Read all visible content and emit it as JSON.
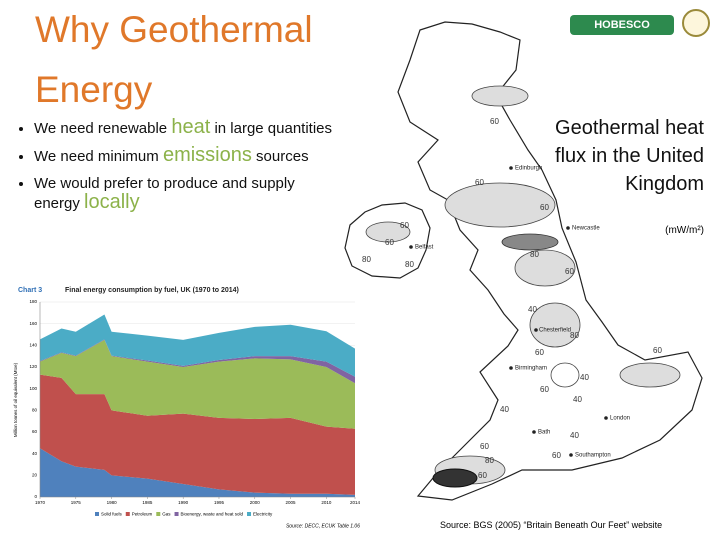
{
  "header": {
    "title_line1": "Why Geothermal",
    "title_line2": "Energy",
    "logo": "HOBESCO"
  },
  "bullets": [
    {
      "before": "We need renewable",
      "highlight": "heat",
      "after": "in large quantities"
    },
    {
      "before": "We need minimum",
      "highlight": "emissions",
      "after": "sources"
    },
    {
      "before": "We would prefer to produce and supply energy",
      "highlight": "locally"
    }
  ],
  "map": {
    "caption": "Geothermal heat flux in the United Kingdom",
    "unit": "(mW/m²)",
    "labels": [
      "60",
      "Edinburgh",
      "60",
      "60",
      "Newcastle",
      "60",
      "60",
      "Belfast",
      "80",
      "80",
      "80",
      "60",
      "40",
      "Chesterfield",
      "80",
      "60",
      "60",
      "Birmingham",
      "40",
      "60",
      "40",
      "40",
      "London",
      "Bath",
      "40",
      "60",
      "60",
      "Southampton",
      "80",
      "60"
    ],
    "source": "Source: BGS (2005) “Britain Beneath Our Feet” website"
  },
  "chart_data": {
    "type": "area",
    "stacked": true,
    "label": "Chart 3",
    "title": "Final energy consumption by fuel, UK (1970 to 2014)",
    "ylabel": "Million tonnes of oil equivalent (Mtoe)",
    "x": [
      1970,
      1973,
      1975,
      1979,
      1980,
      1985,
      1990,
      1995,
      2000,
      2005,
      2010,
      2014
    ],
    "series": [
      {
        "name": "Solid fuels",
        "color": "#4f81bd",
        "values": [
          45,
          33,
          28,
          25,
          20,
          17,
          12,
          7,
          4,
          3,
          3,
          2
        ]
      },
      {
        "name": "Petroleum",
        "color": "#c0504d",
        "values": [
          68,
          77,
          67,
          70,
          60,
          58,
          65,
          66,
          68,
          70,
          62,
          61
        ]
      },
      {
        "name": "Gas",
        "color": "#9bbb59",
        "values": [
          12,
          23,
          35,
          50,
          50,
          50,
          43,
          52,
          56,
          54,
          55,
          42
        ]
      },
      {
        "name": "Bioenergy, waste and heat sold",
        "color": "#8064a2",
        "values": [
          0.5,
          0.5,
          0.5,
          0.5,
          0.5,
          1,
          1,
          1.5,
          2,
          3,
          5,
          6
        ]
      },
      {
        "name": "Electricity",
        "color": "#4bacc6",
        "values": [
          20,
          22,
          22,
          23,
          22,
          23,
          24,
          25,
          27,
          29,
          28,
          26
        ]
      }
    ],
    "xlim": [
      1970,
      2014
    ],
    "xticks": [
      1970,
      1975,
      1980,
      1985,
      1990,
      1995,
      2000,
      2005,
      2010,
      2014
    ],
    "ylim": [
      0,
      180
    ],
    "yticks": [
      0,
      20,
      40,
      60,
      80,
      100,
      120,
      140,
      160,
      180
    ],
    "grid": true,
    "source": "Source: DECC, ECUK Table 1.06"
  }
}
